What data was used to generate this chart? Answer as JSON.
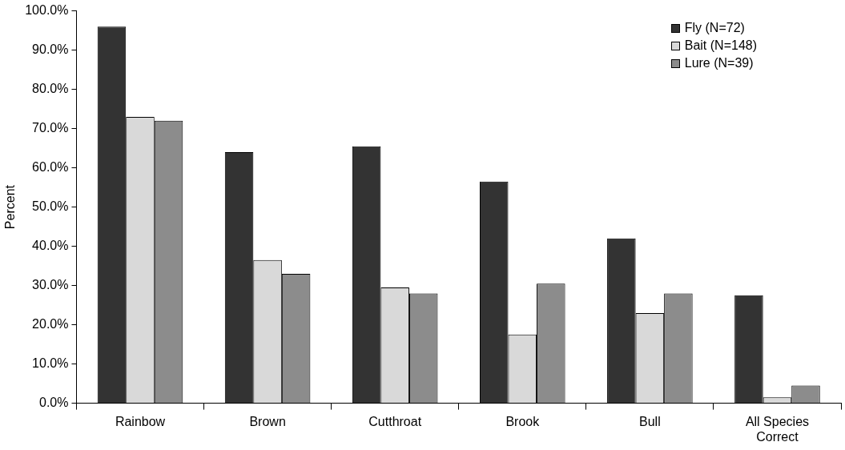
{
  "chart_data": {
    "type": "bar",
    "ylabel": "Percent",
    "categories": [
      "Rainbow",
      "Brown",
      "Cutthroat",
      "Brook",
      "Bull",
      "All Species Correct"
    ],
    "series": [
      {
        "name": "Fly (N=72)",
        "color": "#333333",
        "values": [
          96,
          64,
          65.5,
          56.5,
          42,
          27.5
        ]
      },
      {
        "name": "Bait (N=148)",
        "color": "#d9d9d9",
        "values": [
          73,
          36.5,
          29.5,
          17.5,
          23,
          1.5
        ]
      },
      {
        "name": "Lure (N=39)",
        "color": "#8c8c8c",
        "values": [
          72,
          33,
          28,
          30.5,
          28,
          4.5
        ]
      }
    ],
    "ylim": [
      0,
      100
    ],
    "yticks": [
      {
        "value": 0,
        "label": "0.0%"
      },
      {
        "value": 10,
        "label": "10.0%"
      },
      {
        "value": 20,
        "label": "20.0%"
      },
      {
        "value": 30,
        "label": "30.0%"
      },
      {
        "value": 40,
        "label": "40.0%"
      },
      {
        "value": 50,
        "label": "50.0%"
      },
      {
        "value": 60,
        "label": "60.0%"
      },
      {
        "value": 70,
        "label": "70.0%"
      },
      {
        "value": 80,
        "label": "80.0%"
      },
      {
        "value": 90,
        "label": "90.0%"
      },
      {
        "value": 100,
        "label": "100.0%"
      }
    ],
    "legend": "top right"
  }
}
